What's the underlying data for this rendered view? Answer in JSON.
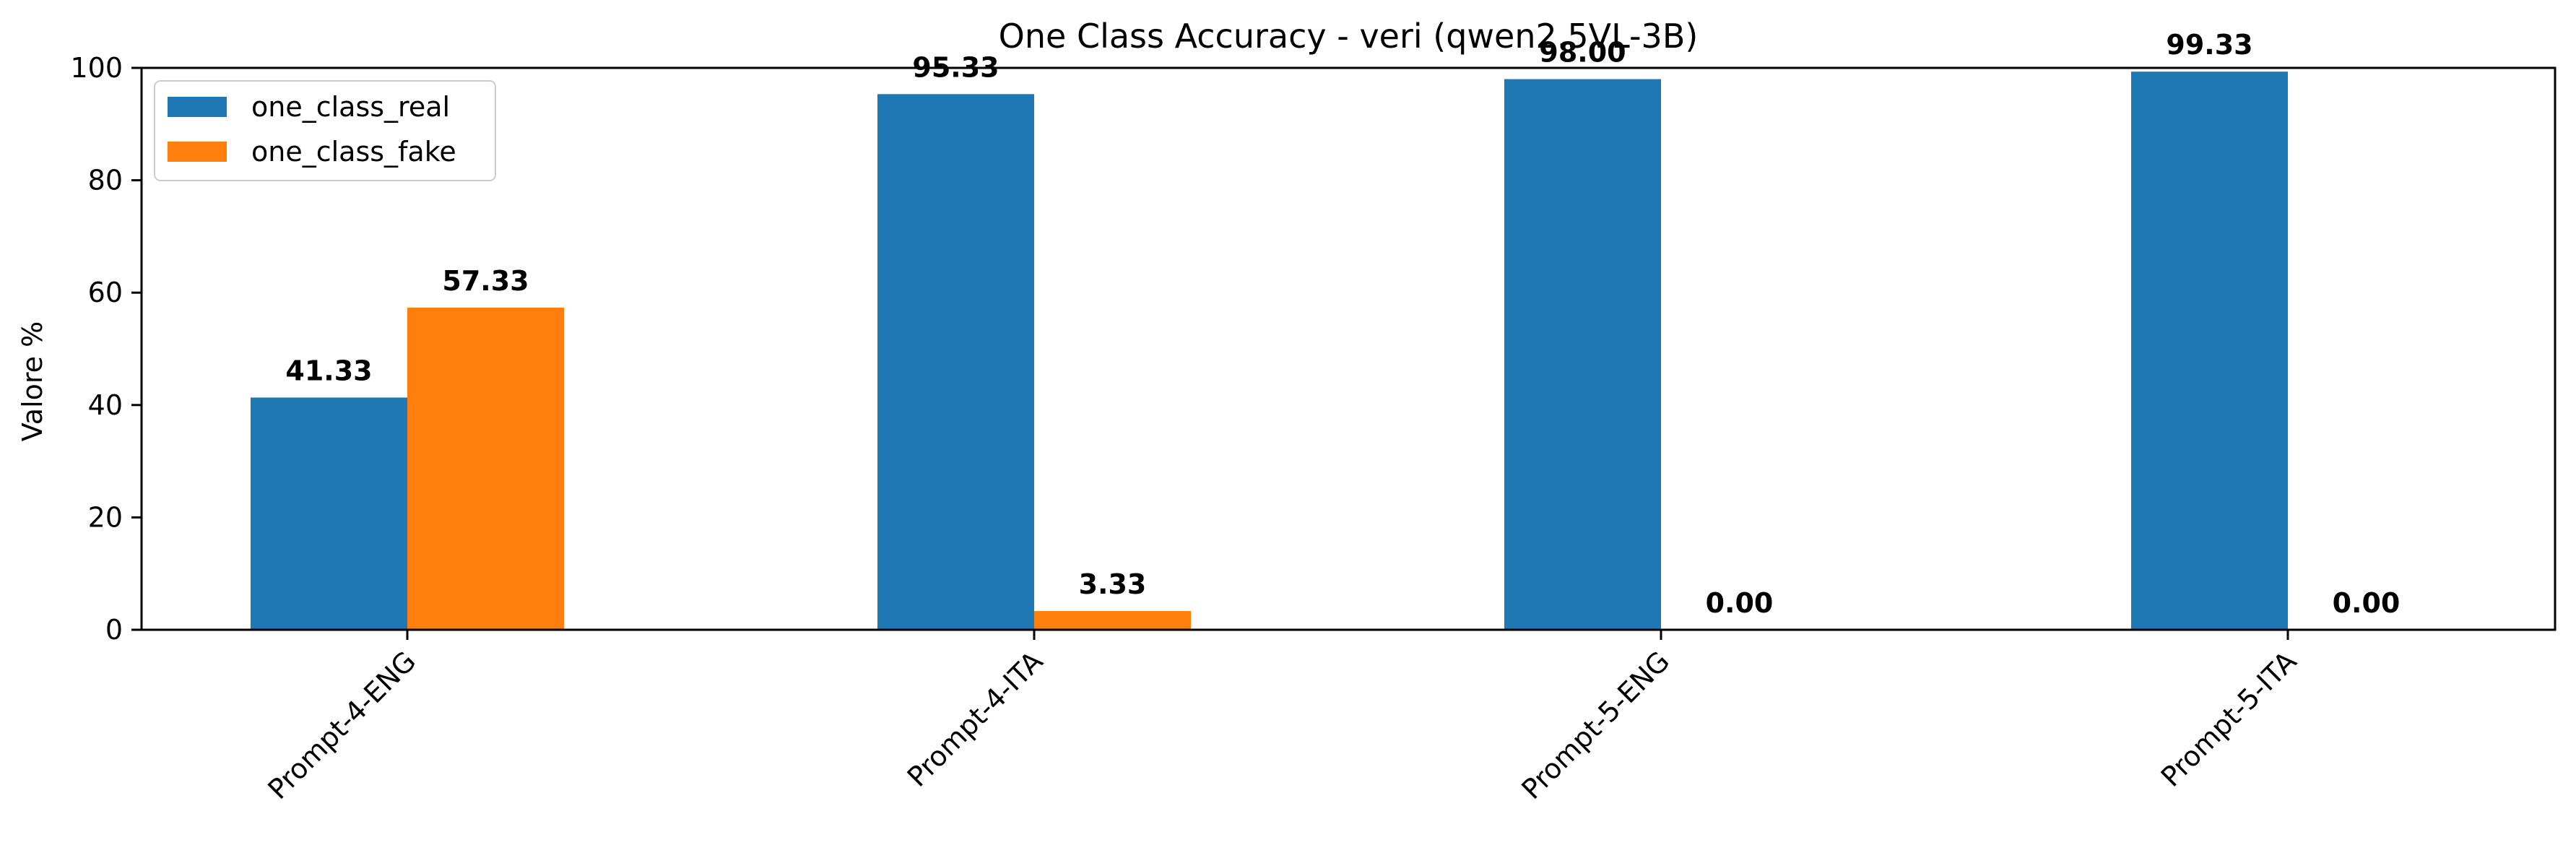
{
  "chart_data": {
    "type": "bar",
    "title": "One Class Accuracy - veri (qwen2.5VL-3B)",
    "xlabel": "",
    "ylabel": "Valore %",
    "categories": [
      "Prompt-4-ENG",
      "Prompt-4-ITA",
      "Prompt-5-ENG",
      "Prompt-5-ITA"
    ],
    "series": [
      {
        "name": "one_class_real",
        "color": "#1f77b4",
        "values": [
          41.33,
          95.33,
          98.0,
          99.33
        ],
        "labels": [
          "41.33",
          "95.33",
          "98.00",
          "99.33"
        ]
      },
      {
        "name": "one_class_fake",
        "color": "#ff7f0e",
        "values": [
          57.33,
          3.33,
          0.0,
          0.0
        ],
        "labels": [
          "57.33",
          "3.33",
          "0.00",
          "0.00"
        ]
      }
    ],
    "ylim": [
      0,
      100
    ],
    "yticks": [
      0,
      20,
      40,
      60,
      80,
      100
    ],
    "ytick_labels": [
      "0",
      "20",
      "40",
      "60",
      "80",
      "100"
    ],
    "legend_position": "top-left",
    "grid": false
  }
}
